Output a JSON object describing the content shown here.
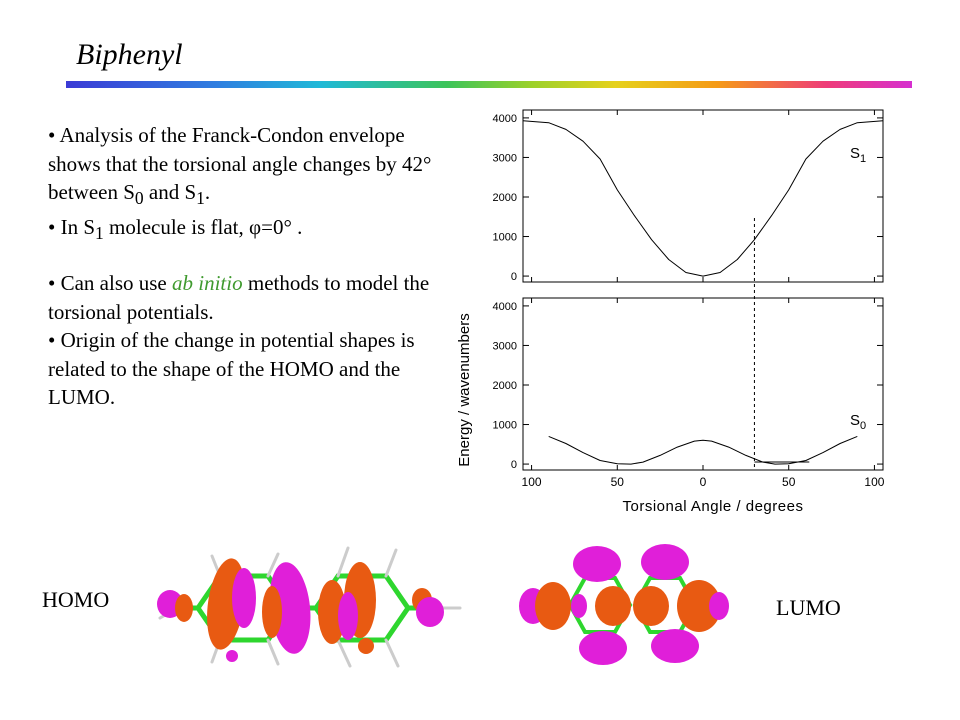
{
  "slide": {
    "title": "Biphenyl",
    "accent_gradient": [
      "#3b3bd6",
      "#20b9d8",
      "#3cc45a",
      "#e6d11c",
      "#f59a16",
      "#ee3b7a",
      "#d62fd0"
    ]
  },
  "bullets": {
    "b1": {
      "prefix": "• Analysis of the Franck-Condon envelope shows that the torsional angle changes by 42° between S",
      "sub1": "0",
      "mid": " and S",
      "sub2": "1",
      "end": "."
    },
    "b2": {
      "prefix": "• In S",
      "sub": "1",
      "mid": " molecule is flat, ",
      "phi": "φ=0°",
      "end": " ."
    },
    "b3": {
      "prefix": "• Can also use ",
      "em": "ab initio",
      "rest": " methods to model the torsional potentials."
    },
    "b4": {
      "text": "• Origin of the change in potential shapes is related to the shape of the HOMO and the LUMO."
    }
  },
  "chart_data": {
    "type": "line",
    "xlabel": "Torsional Angle / degrees",
    "ylabel": "Energy / wavenumbers",
    "xlim": [
      -105,
      105
    ],
    "x_ticks": [
      "100",
      "50",
      "0",
      "50",
      "100"
    ],
    "x_tick_values": [
      -100,
      -50,
      0,
      50,
      100
    ],
    "panels": [
      {
        "name": "S1",
        "label_main": "S",
        "label_sub": "1",
        "ylim": [
          -150,
          4200
        ],
        "y_ticks": [
          "0",
          "1000",
          "2000",
          "3000",
          "4000"
        ],
        "y_tick_values": [
          0,
          1000,
          2000,
          3000,
          4000
        ],
        "x": [
          -105,
          -90,
          -80,
          -70,
          -60,
          -50,
          -40,
          -30,
          -20,
          -10,
          0,
          10,
          20,
          30,
          40,
          50,
          60,
          70,
          80,
          90,
          105
        ],
        "y": [
          3930,
          3880,
          3710,
          3410,
          2960,
          2180,
          1530,
          920,
          420,
          90,
          0,
          90,
          420,
          920,
          1530,
          2180,
          2960,
          3410,
          3710,
          3880,
          3930
        ]
      },
      {
        "name": "S0",
        "label_main": "S",
        "label_sub": "0",
        "ylim": [
          -150,
          4200
        ],
        "y_ticks": [
          "0",
          "1000",
          "2000",
          "3000",
          "4000"
        ],
        "y_tick_values": [
          0,
          1000,
          2000,
          3000,
          4000
        ],
        "x": [
          -90,
          -80,
          -70,
          -60,
          -50,
          -42,
          -35,
          -25,
          -15,
          -5,
          0,
          5,
          15,
          25,
          35,
          42,
          50,
          60,
          70,
          80,
          90
        ],
        "y": [
          700,
          520,
          290,
          90,
          10,
          0,
          50,
          220,
          430,
          580,
          600,
          580,
          430,
          220,
          50,
          0,
          10,
          90,
          290,
          520,
          700
        ]
      }
    ],
    "marker_angle": 30
  },
  "orbitals": {
    "homo_label": "HOMO",
    "lumo_label": "LUMO",
    "colors": {
      "positive": "#e85a12",
      "negative": "#e01fd9",
      "bond": "#2ed62e"
    }
  }
}
